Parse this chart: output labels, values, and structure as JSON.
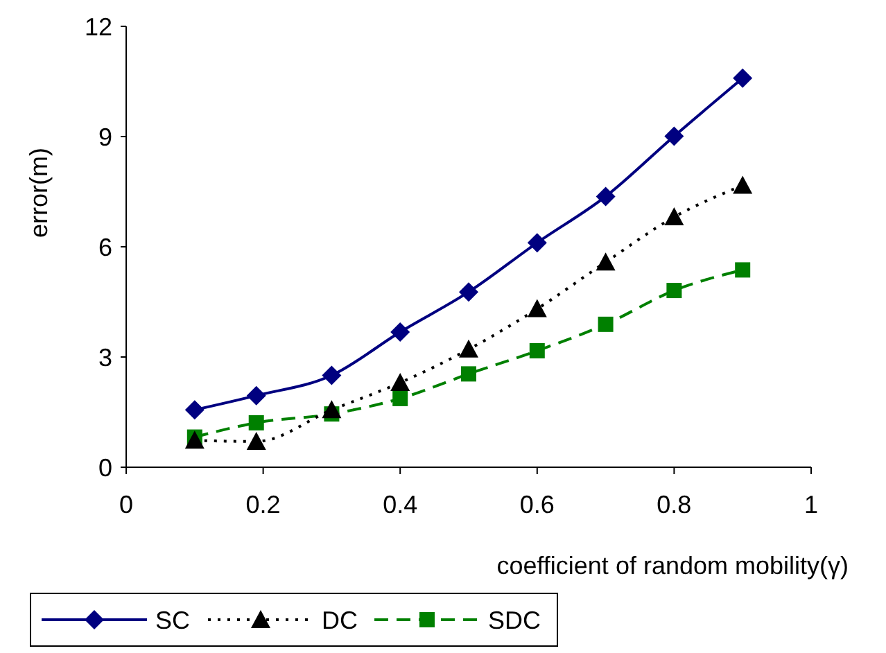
{
  "chart_data": {
    "type": "line",
    "xlabel": "coefficient of random mobility(γ)",
    "ylabel": "error(m)",
    "x": [
      0.1,
      0.19,
      0.3,
      0.4,
      0.5,
      0.6,
      0.7,
      0.8,
      0.9
    ],
    "series": [
      {
        "name": "SC",
        "color": "#000080",
        "marker": "diamond",
        "line_style": "solid",
        "values": [
          1.56,
          1.95,
          2.5,
          3.68,
          4.77,
          6.11,
          7.37,
          9.01,
          10.59
        ]
      },
      {
        "name": "DC",
        "color": "#000000",
        "marker": "triangle",
        "line_style": "dotted",
        "values": [
          0.73,
          0.7,
          1.56,
          2.3,
          3.21,
          4.31,
          5.58,
          6.81,
          7.67
        ]
      },
      {
        "name": "SDC",
        "color": "#008000",
        "marker": "square",
        "line_style": "dashed",
        "values": [
          0.82,
          1.21,
          1.45,
          1.87,
          2.54,
          3.17,
          3.89,
          4.81,
          5.37
        ]
      }
    ],
    "xlim": [
      0,
      1
    ],
    "xticks": [
      0,
      0.2,
      0.4,
      0.6,
      0.8,
      1
    ],
    "ylim": [
      0,
      12
    ],
    "yticks": [
      0,
      3,
      6,
      9,
      12
    ],
    "grid": false,
    "legend": "bottom left"
  }
}
